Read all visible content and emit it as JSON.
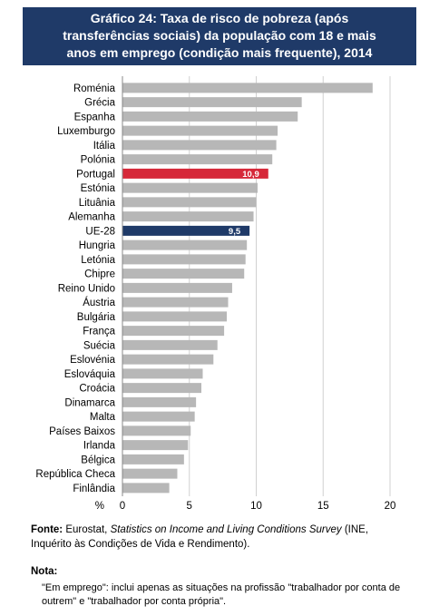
{
  "title_lines": [
    "Gráfico 24: Taxa de risco de pobreza (após",
    "transferências sociais) da população com 18 e mais",
    "anos em emprego (condição mais frequente), 2014"
  ],
  "colors": {
    "title_bg": "#1f3a68",
    "bar_default": "#b7b7b7",
    "bar_portugal": "#d62839",
    "bar_eu": "#1f3a68",
    "grid": "#d0d0d0"
  },
  "chart_data": {
    "type": "bar",
    "orientation": "horizontal",
    "title": "Gráfico 24: Taxa de risco de pobreza (após transferências sociais) da população com 18 e mais anos em emprego (condição mais frequente), 2014",
    "xlabel": "%",
    "xlim": [
      0,
      20
    ],
    "xticks": [
      0,
      5,
      10,
      15,
      20
    ],
    "grid": true,
    "categories": [
      "Roménia",
      "Grécia",
      "Espanha",
      "Luxemburgo",
      "Itália",
      "Polónia",
      "Portugal",
      "Estónia",
      "Lituânia",
      "Alemanha",
      "UE-28",
      "Hungria",
      "Letónia",
      "Chipre",
      "Reino Unido",
      "Áustria",
      "Bulgária",
      "França",
      "Suécia",
      "Eslovénia",
      "Eslováquia",
      "Croácia",
      "Dinamarca",
      "Malta",
      "Países Baixos",
      "Irlanda",
      "Bélgica",
      "República Checa",
      "Finlândia"
    ],
    "values": [
      18.7,
      13.4,
      13.1,
      11.6,
      11.5,
      11.2,
      10.9,
      10.1,
      10.0,
      9.8,
      9.5,
      9.3,
      9.2,
      9.1,
      8.2,
      7.9,
      7.8,
      7.6,
      7.1,
      6.8,
      6.0,
      5.9,
      5.5,
      5.4,
      5.1,
      4.9,
      4.6,
      4.1,
      3.5
    ],
    "highlight": {
      "Portugal": "10,9",
      "UE-28": "9,5"
    }
  },
  "source": {
    "label": "Fonte:",
    "text_before": " Eurostat, ",
    "italic": "Statistics on Income and Living Conditions Survey",
    "text_after": " (INE, Inquérito às Condições de Vida e Rendimento)."
  },
  "note": {
    "title": "Nota:",
    "text": "\"Em emprego\": inclui apenas as situações na profissão \"trabalhador por conta de outrem\" e \"trabalhador por conta própria\"."
  }
}
